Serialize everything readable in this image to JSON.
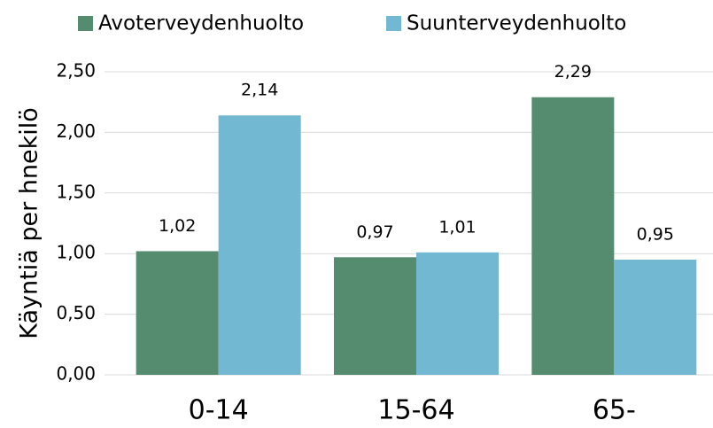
{
  "chart_data": {
    "type": "bar",
    "y_axis_label": "Käyntiä per hnekilö",
    "categories": [
      "0-14",
      "15-64",
      "65-"
    ],
    "series": [
      {
        "name": "Avoterveydenhuolto",
        "color": "#558b6e",
        "values": [
          1.02,
          0.97,
          2.29
        ],
        "value_labels": [
          "1,02",
          "0,97",
          "2,29"
        ]
      },
      {
        "name": "Suunterveydenhuolto",
        "color": "#72b8d3",
        "values": [
          2.14,
          1.01,
          0.95
        ],
        "value_labels": [
          "2,14",
          "1,01",
          "0,95"
        ]
      }
    ],
    "ylim": [
      0,
      2.5
    ],
    "yticks": [
      {
        "value": 0,
        "label": "0,00"
      },
      {
        "value": 0.5,
        "label": "0,50"
      },
      {
        "value": 1,
        "label": "1,00"
      },
      {
        "value": 1.5,
        "label": "1,50"
      },
      {
        "value": 2,
        "label": "2,00"
      },
      {
        "value": 2.5,
        "label": "2,50"
      }
    ],
    "grid": true,
    "legend": "top"
  }
}
